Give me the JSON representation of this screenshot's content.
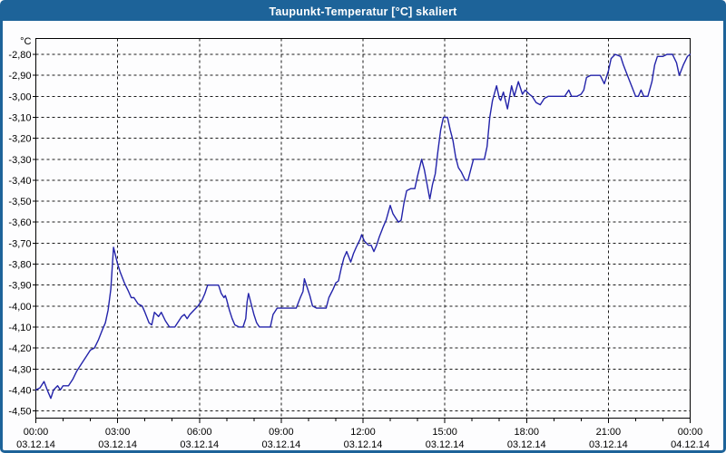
{
  "window": {
    "title": "Taupunkt-Temperatur [°C] skaliert"
  },
  "colors": {
    "title_bar": "#1d6399",
    "frame": "#1d6399",
    "page_background": "#fdfdfe",
    "title_text": "#ffffff",
    "line": "#2323aa",
    "grid": "#1a1a1a",
    "plot_border": "#000000",
    "label_text": "#000000"
  },
  "chart_data": {
    "type": "line",
    "title": "Taupunkt-Temperatur [°C] skaliert",
    "grid": "dashed",
    "legend": "none",
    "ylim": [
      -4.5,
      -2.8
    ],
    "y_tick_step": 0.1,
    "y_axis": {
      "unit": "°C",
      "ticks": [
        {
          "value": -2.8,
          "label": "-2,80"
        },
        {
          "value": -2.9,
          "label": "-2,90"
        },
        {
          "value": -3.0,
          "label": "-3,00"
        },
        {
          "value": -3.1,
          "label": "-3,10"
        },
        {
          "value": -3.2,
          "label": "-3,20"
        },
        {
          "value": -3.3,
          "label": "-3,30"
        },
        {
          "value": -3.4,
          "label": "-3,40"
        },
        {
          "value": -3.5,
          "label": "-3,50"
        },
        {
          "value": -3.6,
          "label": "-3,60"
        },
        {
          "value": -3.7,
          "label": "-3,70"
        },
        {
          "value": -3.8,
          "label": "-3,80"
        },
        {
          "value": -3.9,
          "label": "-3,90"
        },
        {
          "value": -4.0,
          "label": "-4,00"
        },
        {
          "value": -4.1,
          "label": "-4,10"
        },
        {
          "value": -4.2,
          "label": "-4,20"
        },
        {
          "value": -4.3,
          "label": "-4,30"
        },
        {
          "value": -4.4,
          "label": "-4,40"
        },
        {
          "value": -4.5,
          "label": "-4,50"
        }
      ]
    },
    "x_axis": {
      "span_hours": 24,
      "minor_tick_hours": 1,
      "major_ticks": [
        {
          "hour": 0,
          "time": "00:00",
          "date": "03.12.14"
        },
        {
          "hour": 3,
          "time": "03:00",
          "date": "03.12.14"
        },
        {
          "hour": 6,
          "time": "06:00",
          "date": "03.12.14"
        },
        {
          "hour": 9,
          "time": "09:00",
          "date": "03.12.14"
        },
        {
          "hour": 12,
          "time": "12:00",
          "date": "03.12.14"
        },
        {
          "hour": 15,
          "time": "15:00",
          "date": "03.12.14"
        },
        {
          "hour": 18,
          "time": "18:00",
          "date": "03.12.14"
        },
        {
          "hour": 21,
          "time": "21:00",
          "date": "03.12.14"
        },
        {
          "hour": 24,
          "time": "00:00",
          "date": "04.12.14"
        }
      ]
    },
    "series": [
      {
        "name": "Taupunkt-Temperatur",
        "color": "#2323aa",
        "points": [
          [
            0,
            -4.4
          ],
          [
            0.15,
            -4.39
          ],
          [
            0.3,
            -4.36
          ],
          [
            0.45,
            -4.41
          ],
          [
            0.55,
            -4.44
          ],
          [
            0.65,
            -4.4
          ],
          [
            0.8,
            -4.38
          ],
          [
            0.9,
            -4.4
          ],
          [
            1,
            -4.38
          ],
          [
            1.2,
            -4.38
          ],
          [
            1.35,
            -4.35
          ],
          [
            1.5,
            -4.31
          ],
          [
            1.7,
            -4.27
          ],
          [
            1.85,
            -4.24
          ],
          [
            2,
            -4.21
          ],
          [
            2.15,
            -4.2
          ],
          [
            2.3,
            -4.16
          ],
          [
            2.45,
            -4.11
          ],
          [
            2.55,
            -4.08
          ],
          [
            2.65,
            -4.02
          ],
          [
            2.75,
            -3.92
          ],
          [
            2.85,
            -3.72
          ],
          [
            3,
            -3.8
          ],
          [
            3.1,
            -3.84
          ],
          [
            3.25,
            -3.89
          ],
          [
            3.4,
            -3.93
          ],
          [
            3.5,
            -3.96
          ],
          [
            3.6,
            -3.96
          ],
          [
            3.75,
            -3.99
          ],
          [
            3.9,
            -4.0
          ],
          [
            4,
            -4.03
          ],
          [
            4.15,
            -4.08
          ],
          [
            4.25,
            -4.09
          ],
          [
            4.35,
            -4.03
          ],
          [
            4.5,
            -4.05
          ],
          [
            4.6,
            -4.03
          ],
          [
            4.75,
            -4.07
          ],
          [
            4.9,
            -4.1
          ],
          [
            5.1,
            -4.1
          ],
          [
            5.2,
            -4.08
          ],
          [
            5.35,
            -4.05
          ],
          [
            5.45,
            -4.04
          ],
          [
            5.55,
            -4.06
          ],
          [
            5.65,
            -4.04
          ],
          [
            5.8,
            -4.02
          ],
          [
            5.95,
            -4.0
          ],
          [
            6.1,
            -3.97
          ],
          [
            6.2,
            -3.94
          ],
          [
            6.3,
            -3.9
          ],
          [
            6.5,
            -3.9
          ],
          [
            6.7,
            -3.9
          ],
          [
            6.8,
            -3.94
          ],
          [
            6.9,
            -3.96
          ],
          [
            6.95,
            -3.95
          ],
          [
            7,
            -3.97
          ],
          [
            7.1,
            -4.02
          ],
          [
            7.2,
            -4.06
          ],
          [
            7.3,
            -4.09
          ],
          [
            7.45,
            -4.1
          ],
          [
            7.6,
            -4.1
          ],
          [
            7.7,
            -4.06
          ],
          [
            7.75,
            -3.98
          ],
          [
            7.8,
            -3.94
          ],
          [
            7.9,
            -3.99
          ],
          [
            8,
            -4.04
          ],
          [
            8.1,
            -4.08
          ],
          [
            8.2,
            -4.1
          ],
          [
            8.4,
            -4.1
          ],
          [
            8.6,
            -4.1
          ],
          [
            8.7,
            -4.04
          ],
          [
            8.85,
            -4.01
          ],
          [
            9.1,
            -4.01
          ],
          [
            9.3,
            -4.01
          ],
          [
            9.55,
            -4.01
          ],
          [
            9.7,
            -3.96
          ],
          [
            9.8,
            -3.93
          ],
          [
            9.85,
            -3.87
          ],
          [
            9.95,
            -3.91
          ],
          [
            10.05,
            -3.95
          ],
          [
            10.15,
            -4.0
          ],
          [
            10.3,
            -4.01
          ],
          [
            10.5,
            -4.01
          ],
          [
            10.65,
            -4.01
          ],
          [
            10.75,
            -3.96
          ],
          [
            10.9,
            -3.92
          ],
          [
            11,
            -3.89
          ],
          [
            11.1,
            -3.88
          ],
          [
            11.2,
            -3.82
          ],
          [
            11.3,
            -3.77
          ],
          [
            11.4,
            -3.74
          ],
          [
            11.55,
            -3.79
          ],
          [
            11.65,
            -3.75
          ],
          [
            11.75,
            -3.72
          ],
          [
            11.9,
            -3.68
          ],
          [
            11.95,
            -3.66
          ],
          [
            12.05,
            -3.69
          ],
          [
            12.2,
            -3.71
          ],
          [
            12.3,
            -3.71
          ],
          [
            12.4,
            -3.74
          ],
          [
            12.5,
            -3.71
          ],
          [
            12.6,
            -3.67
          ],
          [
            12.75,
            -3.62
          ],
          [
            12.85,
            -3.59
          ],
          [
            13,
            -3.52
          ],
          [
            13.1,
            -3.56
          ],
          [
            13.2,
            -3.58
          ],
          [
            13.3,
            -3.6
          ],
          [
            13.4,
            -3.59
          ],
          [
            13.5,
            -3.51
          ],
          [
            13.6,
            -3.45
          ],
          [
            13.75,
            -3.44
          ],
          [
            13.9,
            -3.44
          ],
          [
            14,
            -3.38
          ],
          [
            14.15,
            -3.3
          ],
          [
            14.25,
            -3.35
          ],
          [
            14.35,
            -3.42
          ],
          [
            14.45,
            -3.49
          ],
          [
            14.55,
            -3.42
          ],
          [
            14.65,
            -3.37
          ],
          [
            14.75,
            -3.26
          ],
          [
            14.85,
            -3.16
          ],
          [
            14.95,
            -3.1
          ],
          [
            15.1,
            -3.1
          ],
          [
            15.2,
            -3.16
          ],
          [
            15.3,
            -3.21
          ],
          [
            15.4,
            -3.29
          ],
          [
            15.5,
            -3.34
          ],
          [
            15.6,
            -3.36
          ],
          [
            15.75,
            -3.4
          ],
          [
            15.85,
            -3.4
          ],
          [
            15.95,
            -3.35
          ],
          [
            16.05,
            -3.3
          ],
          [
            16.25,
            -3.3
          ],
          [
            16.45,
            -3.3
          ],
          [
            16.55,
            -3.24
          ],
          [
            16.65,
            -3.1
          ],
          [
            16.75,
            -3.02
          ],
          [
            16.9,
            -2.95
          ],
          [
            17,
            -3.01
          ],
          [
            17.05,
            -3.02
          ],
          [
            17.15,
            -2.98
          ],
          [
            17.3,
            -3.06
          ],
          [
            17.45,
            -2.95
          ],
          [
            17.55,
            -3.0
          ],
          [
            17.7,
            -2.93
          ],
          [
            17.85,
            -2.99
          ],
          [
            17.95,
            -2.97
          ],
          [
            18.1,
            -2.99
          ],
          [
            18.2,
            -3.0
          ],
          [
            18.35,
            -3.03
          ],
          [
            18.5,
            -3.04
          ],
          [
            18.65,
            -3.01
          ],
          [
            18.8,
            -3.0
          ],
          [
            19,
            -3.0
          ],
          [
            19.2,
            -3.0
          ],
          [
            19.4,
            -3.0
          ],
          [
            19.55,
            -2.97
          ],
          [
            19.65,
            -3.0
          ],
          [
            19.85,
            -3.0
          ],
          [
            20,
            -2.99
          ],
          [
            20.1,
            -2.97
          ],
          [
            20.2,
            -2.91
          ],
          [
            20.35,
            -2.9
          ],
          [
            20.55,
            -2.9
          ],
          [
            20.7,
            -2.9
          ],
          [
            20.85,
            -2.94
          ],
          [
            21,
            -2.88
          ],
          [
            21.1,
            -2.82
          ],
          [
            21.25,
            -2.8
          ],
          [
            21.45,
            -2.81
          ],
          [
            21.55,
            -2.85
          ],
          [
            21.7,
            -2.9
          ],
          [
            21.85,
            -2.95
          ],
          [
            22,
            -3.0
          ],
          [
            22.1,
            -3.0
          ],
          [
            22.2,
            -2.97
          ],
          [
            22.3,
            -3.0
          ],
          [
            22.45,
            -3.0
          ],
          [
            22.6,
            -2.93
          ],
          [
            22.7,
            -2.85
          ],
          [
            22.8,
            -2.81
          ],
          [
            23,
            -2.81
          ],
          [
            23.15,
            -2.8
          ],
          [
            23.35,
            -2.8
          ],
          [
            23.5,
            -2.84
          ],
          [
            23.6,
            -2.9
          ],
          [
            23.75,
            -2.85
          ],
          [
            23.9,
            -2.81
          ],
          [
            24,
            -2.8
          ]
        ]
      }
    ]
  }
}
